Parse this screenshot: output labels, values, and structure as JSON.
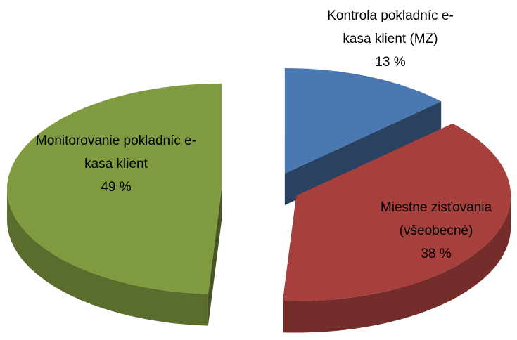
{
  "chart_data": {
    "type": "pie3d",
    "categories": [
      "Kontrola pokladníc e-kasa klient (MZ)",
      "Miestne zisťovania (všeobecné)",
      "Monitorovanie pokladníc e-kasa klient"
    ],
    "values": [
      13,
      38,
      49
    ],
    "value_labels": [
      "13 %",
      "38 %",
      "49 %"
    ],
    "colors": [
      "#4a78b0",
      "#a7403d",
      "#809b3f"
    ]
  }
}
